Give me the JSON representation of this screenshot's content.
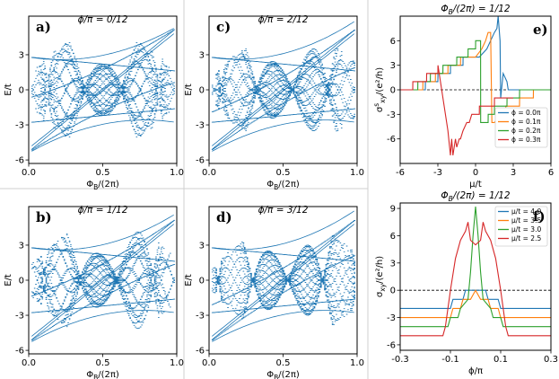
{
  "figure": {
    "separator_color": "#cfcfcf",
    "butterfly_color": "#1f77b4"
  },
  "chart_data": [
    {
      "id": "a",
      "type": "scatter",
      "panel_label": "a)",
      "title": "ϕ/π = 0/12",
      "xlabel": "Φ_B/(2π)",
      "ylabel": "E/t",
      "xlim": [
        0.0,
        1.0
      ],
      "ylim": [
        -6.3,
        6.3
      ],
      "xticks": [
        "0.0",
        "0.5",
        "1.0"
      ],
      "yticks": [
        "3",
        "0",
        "-3",
        "-6"
      ],
      "phase": 0.0,
      "grid": false
    },
    {
      "id": "c",
      "type": "scatter",
      "panel_label": "c)",
      "title": "ϕ/π = 2/12",
      "xlabel": "Φ_B/(2π)",
      "ylabel": "E/t",
      "xlim": [
        0.0,
        1.0
      ],
      "ylim": [
        -6.3,
        6.3
      ],
      "xticks": [
        "0.0",
        "0.5",
        "1.0"
      ],
      "yticks": [
        "3",
        "0",
        "-3",
        "-6"
      ],
      "phase": 0.1667,
      "grid": false
    },
    {
      "id": "b",
      "type": "scatter",
      "panel_label": "b)",
      "title": "ϕ/π = 1/12",
      "xlabel": "Φ_B/(2π)",
      "ylabel": "E/t",
      "xlim": [
        0.0,
        1.0
      ],
      "ylim": [
        -6.3,
        6.3
      ],
      "xticks": [
        "0.0",
        "0.5",
        "1.0"
      ],
      "yticks": [
        "3",
        "0",
        "-3",
        "-6"
      ],
      "phase": 0.0833,
      "grid": false
    },
    {
      "id": "d",
      "type": "scatter",
      "panel_label": "d)",
      "title": "ϕ/π = 3/12",
      "xlabel": "Φ_B/(2π)",
      "ylabel": "E/t",
      "xlim": [
        0.0,
        1.0
      ],
      "ylim": [
        -6.3,
        6.3
      ],
      "xticks": [
        "0.0",
        "0.5",
        "1.0"
      ],
      "yticks": [
        "3",
        "0",
        "-3",
        "-6"
      ],
      "phase": 0.25,
      "grid": false
    },
    {
      "id": "e",
      "type": "line",
      "panel_label": "e)",
      "title": "Φ_B/(2π) = 1/12",
      "xlabel": "μ/t",
      "ylabel": "σ^s_xy/(e²/h)",
      "xlim": [
        -6,
        6
      ],
      "ylim": [
        -9,
        9
      ],
      "xticks": [
        -6,
        -3,
        0,
        3,
        6
      ],
      "yticks": [
        6,
        3,
        0,
        -3,
        -6
      ],
      "reference_line": {
        "y": 0,
        "style": "dashed"
      },
      "legend": "lower-right",
      "series": [
        {
          "name": "ϕ = 0.0π",
          "color": "#1f77b4",
          "x": [
            -6,
            -4.0,
            -3.99,
            -3.0,
            -2.99,
            -2.0,
            -1.99,
            -1.0,
            -0.99,
            0.3,
            0.9,
            1.2,
            1.5,
            1.7,
            1.8,
            1.95,
            2.0,
            2.2,
            2.5,
            2.6,
            3.0,
            4.0,
            4.01,
            5.2
          ],
          "y": [
            0,
            0,
            1,
            1,
            2,
            2,
            3,
            3,
            4,
            4,
            5,
            6,
            7,
            7.5,
            9,
            6,
            -1,
            2,
            1,
            0,
            0,
            0,
            0,
            0
          ]
        },
        {
          "name": "ϕ = 0.1π",
          "color": "#ff7f0e",
          "x": [
            -6,
            -4.2,
            -4.19,
            -3.2,
            -3.19,
            -2.2,
            -2.19,
            -1.2,
            -1.19,
            0.0,
            0.5,
            0.8,
            1.0,
            1.2,
            1.3,
            1.5,
            2.0,
            2.4,
            2.41,
            3.5,
            3.51,
            4.6,
            4.61,
            6
          ],
          "y": [
            0,
            0,
            1,
            1,
            2,
            2,
            3,
            3,
            4,
            4,
            5,
            6,
            7,
            7,
            -4,
            -4,
            -3,
            -3,
            -2,
            -2,
            -1,
            -1,
            0,
            0
          ]
        },
        {
          "name": "ϕ = 0.2π",
          "color": "#2ca02c",
          "x": [
            -6,
            -4.6,
            -4.59,
            -3.6,
            -3.59,
            -2.6,
            -2.59,
            -1.5,
            -1.49,
            -0.6,
            -0.59,
            0.0,
            0.01,
            0.4,
            0.41,
            1.0,
            1.01,
            1.5,
            1.51,
            2.5,
            2.51,
            3.5,
            3.51,
            6
          ],
          "y": [
            0,
            0,
            1,
            1,
            2,
            2,
            3,
            3,
            4,
            4,
            5,
            5,
            6,
            6,
            -4,
            -4,
            -3,
            -3,
            -2,
            -2,
            -1,
            -1,
            0,
            0
          ]
        },
        {
          "name": "ϕ = 0.3π",
          "color": "#d62728",
          "x": [
            -6,
            -5.0,
            -4.99,
            -3.9,
            -3.89,
            -3.0,
            -2.99,
            -2.2,
            -2.0,
            -1.9,
            -1.8,
            -1.6,
            -1.5,
            -1.3,
            -1.2,
            -1.0,
            -0.7,
            -0.5,
            -0.3,
            0.3,
            0.31,
            1.5,
            1.51,
            3.0
          ],
          "y": [
            0,
            0,
            1,
            1,
            2,
            2,
            3,
            -5,
            -8,
            -6,
            -8,
            -6,
            -7,
            -6,
            -6,
            -5,
            -4,
            -4,
            -3,
            -3,
            -2,
            -2,
            -1,
            -1
          ]
        }
      ]
    },
    {
      "id": "f",
      "type": "line",
      "panel_label": "f)",
      "title": "Φ_B/(2π) = 1/12",
      "xlabel": "ϕ/π",
      "ylabel": "σ_xy/(e²/h)",
      "xlim": [
        -0.3,
        0.3
      ],
      "ylim": [
        -6.6,
        9.6
      ],
      "xticks": [
        -0.3,
        -0.1,
        0.1,
        0.3
      ],
      "yticks": [
        9,
        6,
        3,
        0,
        -3,
        -6
      ],
      "reference_line": {
        "y": 0,
        "style": "dashed"
      },
      "legend": "upper-right",
      "series": [
        {
          "name": "μ/t = 4.0",
          "color": "#1f77b4",
          "x": [
            -0.3,
            -0.1,
            -0.09,
            -0.05,
            -0.04,
            0.04,
            0.05,
            0.09,
            0.1,
            0.3
          ],
          "y": [
            -2,
            -2,
            -1,
            -1,
            0,
            0,
            -1,
            -1,
            -2,
            -2
          ]
        },
        {
          "name": "μ/t = 3.5",
          "color": "#ff7f0e",
          "x": [
            -0.3,
            -0.1,
            -0.09,
            -0.06,
            -0.05,
            -0.02,
            0.0,
            0.02,
            0.05,
            0.06,
            0.09,
            0.1,
            0.3
          ],
          "y": [
            -3,
            -3,
            -2,
            -2,
            -1,
            -1,
            0,
            -1,
            -1,
            -2,
            -2,
            -3,
            -3
          ]
        },
        {
          "name": "μ/t = 3.0",
          "color": "#2ca02c",
          "x": [
            -0.3,
            -0.11,
            -0.1,
            -0.07,
            -0.06,
            -0.03,
            -0.02,
            -0.01,
            0.0,
            0.01,
            0.02,
            0.03,
            0.06,
            0.07,
            0.1,
            0.11,
            0.3
          ],
          "y": [
            -4,
            -4,
            -3,
            -3,
            -2,
            -1,
            2,
            6,
            9.2,
            6,
            2,
            -1,
            -2,
            -3,
            -3,
            -4,
            -4
          ]
        },
        {
          "name": "μ/t = 2.5",
          "color": "#d62728",
          "x": [
            -0.3,
            -0.13,
            -0.12,
            -0.1,
            -0.08,
            -0.06,
            -0.04,
            -0.03,
            -0.02,
            0.0,
            0.02,
            0.03,
            0.04,
            0.06,
            0.08,
            0.1,
            0.12,
            0.13,
            0.3
          ],
          "y": [
            -5,
            -5,
            -4,
            0,
            3.5,
            5.5,
            6.5,
            7.5,
            5.5,
            5,
            5.5,
            7.5,
            6.5,
            5.5,
            3.5,
            0,
            -4,
            -5,
            -5
          ]
        }
      ]
    }
  ]
}
